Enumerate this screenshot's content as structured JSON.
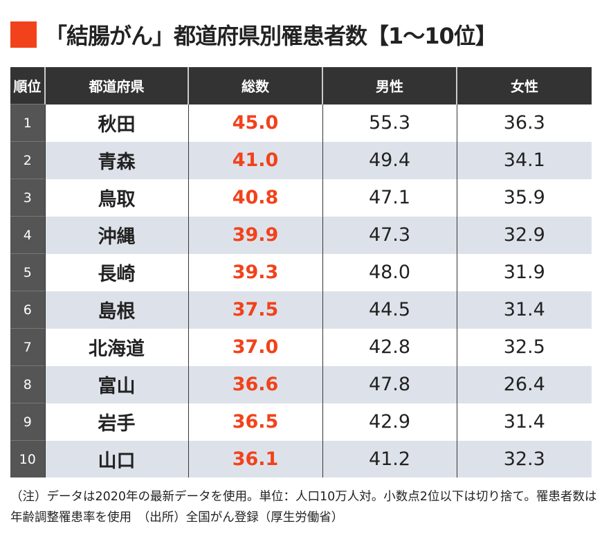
{
  "title": "「結腸がん」都道府県別罹患者数【1～10位】",
  "accent_color": "#f2421b",
  "chart_data": {
    "type": "table",
    "title": "「結腸がん」都道府県別罹患者数【1～10位】",
    "columns": [
      "順位",
      "都道府県",
      "総数",
      "男性",
      "女性"
    ],
    "rows": [
      [
        "1",
        "秋田",
        "45.0",
        "55.3",
        "36.3"
      ],
      [
        "2",
        "青森",
        "41.0",
        "49.4",
        "34.1"
      ],
      [
        "3",
        "鳥取",
        "40.8",
        "47.1",
        "35.9"
      ],
      [
        "4",
        "沖縄",
        "39.9",
        "47.3",
        "32.9"
      ],
      [
        "5",
        "長崎",
        "39.3",
        "48.0",
        "31.9"
      ],
      [
        "6",
        "島根",
        "37.5",
        "44.5",
        "31.4"
      ],
      [
        "7",
        "北海道",
        "37.0",
        "42.8",
        "32.5"
      ],
      [
        "8",
        "富山",
        "36.6",
        "47.8",
        "26.4"
      ],
      [
        "9",
        "岩手",
        "36.5",
        "42.9",
        "31.4"
      ],
      [
        "10",
        "山口",
        "36.1",
        "41.2",
        "32.3"
      ]
    ]
  },
  "note": "（注）データは2020年の最新データを使用。単位：人口10万人対。小数点2位以下は切り捨て。罹患者数は年齢調整罹患率を使用　（出所）全国がん登録（厚生労働省）"
}
